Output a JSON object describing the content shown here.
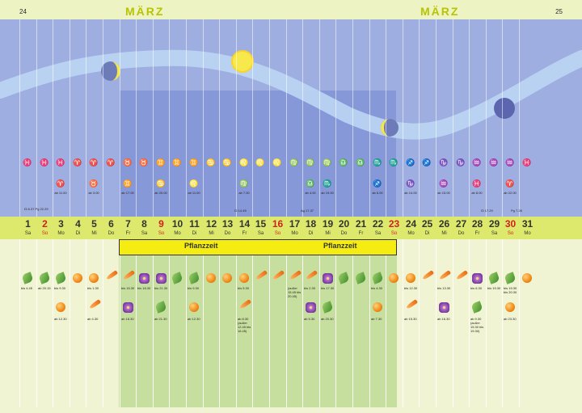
{
  "header": {
    "page_left": "24",
    "page_right": "25",
    "month_left": "MÄRZ",
    "month_right": "MÄRZ"
  },
  "days": [
    {
      "num": "1",
      "name": "Sa",
      "sunday": false
    },
    {
      "num": "2",
      "name": "So",
      "sunday": true
    },
    {
      "num": "3",
      "name": "Mo",
      "sunday": false
    },
    {
      "num": "4",
      "name": "Di",
      "sunday": false
    },
    {
      "num": "5",
      "name": "Mi",
      "sunday": false
    },
    {
      "num": "6",
      "name": "Do",
      "sunday": false
    },
    {
      "num": "7",
      "name": "Fr",
      "sunday": false
    },
    {
      "num": "8",
      "name": "Sa",
      "sunday": false
    },
    {
      "num": "9",
      "name": "So",
      "sunday": true
    },
    {
      "num": "10",
      "name": "Mo",
      "sunday": false
    },
    {
      "num": "11",
      "name": "Di",
      "sunday": false
    },
    {
      "num": "12",
      "name": "Mi",
      "sunday": false
    },
    {
      "num": "13",
      "name": "Do",
      "sunday": false
    },
    {
      "num": "14",
      "name": "Fr",
      "sunday": false
    },
    {
      "num": "15",
      "name": "Sa",
      "sunday": false
    },
    {
      "num": "16",
      "name": "So",
      "sunday": true
    },
    {
      "num": "17",
      "name": "Mo",
      "sunday": false
    },
    {
      "num": "18",
      "name": "Di",
      "sunday": false
    },
    {
      "num": "19",
      "name": "Mi",
      "sunday": false
    },
    {
      "num": "20",
      "name": "Do",
      "sunday": false
    },
    {
      "num": "21",
      "name": "Fr",
      "sunday": false
    },
    {
      "num": "22",
      "name": "Sa",
      "sunday": false
    },
    {
      "num": "23",
      "name": "So",
      "sunday": true
    },
    {
      "num": "24",
      "name": "Mo",
      "sunday": false
    },
    {
      "num": "25",
      "name": "Di",
      "sunday": false
    },
    {
      "num": "26",
      "name": "Mi",
      "sunday": false
    },
    {
      "num": "27",
      "name": "Do",
      "sunday": false
    },
    {
      "num": "28",
      "name": "Fr",
      "sunday": false
    },
    {
      "num": "29",
      "name": "Sa",
      "sunday": false
    },
    {
      "num": "30",
      "name": "So",
      "sunday": true
    },
    {
      "num": "31",
      "name": "Mo",
      "sunday": false
    }
  ],
  "pflanzzeit": [
    "Pflanzzeit",
    "Pflanzzeit"
  ],
  "zodiac_row1": [
    "♓",
    "♓",
    "♓",
    "♈",
    "♈",
    "♈",
    "♉",
    "♉",
    "♊",
    "♊",
    "♊",
    "♋",
    "♋",
    "♌",
    "♌",
    "♌",
    "♍",
    "♍",
    "♍",
    "♎",
    "♎",
    "♏",
    "♏",
    "♐",
    "♐",
    "♑",
    "♑",
    "♒",
    "♒",
    "♒",
    "♓"
  ],
  "zodiac_row2": [
    {
      "day": 3,
      "sign": "♈",
      "time": "ab 11.00"
    },
    {
      "day": 5,
      "sign": "♉",
      "time": "ab 3.00"
    },
    {
      "day": 7,
      "sign": "♊",
      "time": "ab 17.00"
    },
    {
      "day": 9,
      "sign": "♋",
      "time": "ab 20.00"
    },
    {
      "day": 11,
      "sign": "♌",
      "time": "ab 11.00"
    },
    {
      "day": 14,
      "sign": "♍",
      "time": "ab 7.00"
    },
    {
      "day": 18,
      "sign": "♎",
      "time": "ab 4.00"
    },
    {
      "day": 19,
      "sign": "♏",
      "time": "ab 19.00"
    },
    {
      "day": 22,
      "sign": "♐",
      "time": "ab 6.00"
    },
    {
      "day": 24,
      "sign": "♑",
      "time": "ab 14.00"
    },
    {
      "day": 26,
      "sign": "♒",
      "time": "ab 15.00"
    },
    {
      "day": 28,
      "sign": "♓",
      "time": "ab 8.00"
    },
    {
      "day": 30,
      "sign": "♈",
      "time": "ab 22.00"
    }
  ],
  "notes": {
    "day1": "☊ 6.37\nPg 22.29",
    "day14": "☊ 14.45",
    "day17": "Ag 17.37",
    "day28": "☊ 17.29",
    "day29": "Pg 7.26"
  },
  "icons_row1": [
    {
      "day": 1,
      "type": "leaf",
      "time": "bis 4.45"
    },
    {
      "day": 2,
      "type": "leaf",
      "time": "ab 20.15"
    },
    {
      "day": 3,
      "type": "leaf",
      "time": "bis 9.30"
    },
    {
      "day": 4,
      "type": "fruit",
      "time": ""
    },
    {
      "day": 5,
      "type": "fruit",
      "time": "bis 1.30"
    },
    {
      "day": 6,
      "type": "root",
      "time": ""
    },
    {
      "day": 7,
      "type": "root",
      "time": "bis 15.30"
    },
    {
      "day": 8,
      "type": "flower",
      "time": "bis 18.30"
    },
    {
      "day": 9,
      "type": "flower",
      "time": "bis 21.30"
    },
    {
      "day": 10,
      "type": "leaf",
      "time": ""
    },
    {
      "day": 11,
      "type": "leaf",
      "time": "bis 9.30"
    },
    {
      "day": 12,
      "type": "fruit",
      "time": ""
    },
    {
      "day": 13,
      "type": "fruit",
      "time": ""
    },
    {
      "day": 14,
      "type": "fruit",
      "time": "bis 5.30"
    },
    {
      "day": 15,
      "type": "root",
      "time": ""
    },
    {
      "day": 16,
      "type": "root",
      "time": ""
    },
    {
      "day": 17,
      "type": "root",
      "time": "(außer 15.45 bis 20.45)"
    },
    {
      "day": 18,
      "type": "root",
      "time": "bis 2.30"
    },
    {
      "day": 19,
      "type": "flower",
      "time": "bis 17.30"
    },
    {
      "day": 20,
      "type": "leaf",
      "time": ""
    },
    {
      "day": 21,
      "type": "leaf",
      "time": ""
    },
    {
      "day": 22,
      "type": "leaf",
      "time": "bis 4.30"
    },
    {
      "day": 23,
      "type": "fruit",
      "time": ""
    },
    {
      "day": 24,
      "type": "fruit",
      "time": "bis 12.30"
    },
    {
      "day": 25,
      "type": "root",
      "time": ""
    },
    {
      "day": 26,
      "type": "root",
      "time": "bis 13.30"
    },
    {
      "day": 27,
      "type": "root",
      "time": ""
    },
    {
      "day": 28,
      "type": "flower",
      "time": "bis 6.30"
    },
    {
      "day": 29,
      "type": "leaf",
      "time": "bis 19.30"
    },
    {
      "day": 30,
      "type": "leaf",
      "time": "bis 19.30 bis 20.30"
    },
    {
      "day": 31,
      "type": "fruit",
      "time": ""
    }
  ],
  "icons_row2": [
    {
      "day": 3,
      "type": "fruit",
      "time": "ab 12.30"
    },
    {
      "day": 5,
      "type": "root",
      "time": "ab 4.30"
    },
    {
      "day": 7,
      "type": "flower",
      "time": "ab 18.30"
    },
    {
      "day": 9,
      "type": "leaf",
      "time": "ab 21.30"
    },
    {
      "day": 11,
      "type": "fruit",
      "time": "ab 12.30"
    },
    {
      "day": 14,
      "type": "root",
      "time": "ab 8.30 (außer 12.45 bis 16.45)"
    },
    {
      "day": 18,
      "type": "flower",
      "time": "ab 5.30"
    },
    {
      "day": 19,
      "type": "leaf",
      "time": "ab 20.30"
    },
    {
      "day": 22,
      "type": "fruit",
      "time": "ab 7.30"
    },
    {
      "day": 24,
      "type": "root",
      "time": "ab 15.30"
    },
    {
      "day": 26,
      "type": "flower",
      "time": "ab 16.30"
    },
    {
      "day": 28,
      "type": "leaf",
      "time": "ab 9.30 (außer 15.30 bis 19.30)"
    },
    {
      "day": 30,
      "type": "fruit",
      "time": "ab 23.30"
    }
  ]
}
